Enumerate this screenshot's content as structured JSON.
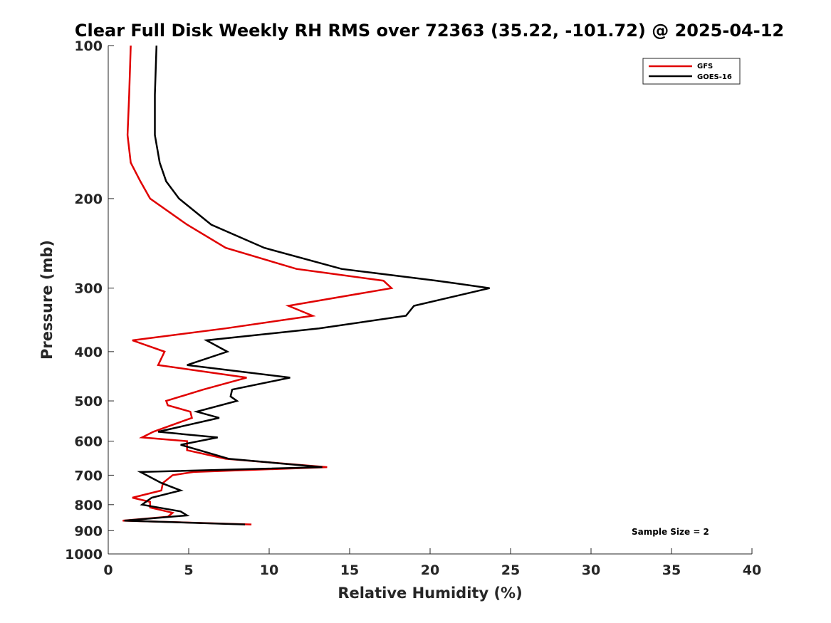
{
  "chart_data": {
    "type": "line",
    "title": "Clear Full Disk Weekly RH RMS over 72363 (35.22, -101.72) @ 2025-04-12",
    "xlabel": "Relative Humidity (%)",
    "ylabel": "Pressure (mb)",
    "xlim": [
      0,
      40
    ],
    "ylim": [
      1000,
      100
    ],
    "yscale": "log",
    "xticks": [
      0,
      5,
      10,
      15,
      20,
      25,
      30,
      35,
      40
    ],
    "yticks": [
      100,
      200,
      300,
      400,
      500,
      600,
      700,
      800,
      900,
      1000
    ],
    "legend_position": "top-right",
    "annotation": "Sample Size = 2",
    "series": [
      {
        "name": "GFS",
        "color": "#e00000",
        "points": [
          [
            1.4,
            100
          ],
          [
            1.3,
            125
          ],
          [
            1.2,
            150
          ],
          [
            1.4,
            170
          ],
          [
            2.0,
            185
          ],
          [
            2.6,
            200
          ],
          [
            4.9,
            225
          ],
          [
            7.3,
            250
          ],
          [
            11.7,
            275
          ],
          [
            17.1,
            290
          ],
          [
            17.6,
            300
          ],
          [
            11.2,
            325
          ],
          [
            12.7,
            340
          ],
          [
            7.3,
            360
          ],
          [
            1.5,
            380
          ],
          [
            3.5,
            400
          ],
          [
            3.1,
            425
          ],
          [
            8.6,
            450
          ],
          [
            5.9,
            475
          ],
          [
            3.6,
            500
          ],
          [
            3.7,
            510
          ],
          [
            5.1,
            525
          ],
          [
            5.2,
            540
          ],
          [
            2.8,
            575
          ],
          [
            2.1,
            590
          ],
          [
            4.9,
            600
          ],
          [
            4.9,
            625
          ],
          [
            7.3,
            650
          ],
          [
            13.6,
            675
          ],
          [
            5.3,
            690
          ],
          [
            4.0,
            700
          ],
          [
            3.4,
            725
          ],
          [
            3.3,
            750
          ],
          [
            1.5,
            775
          ],
          [
            2.6,
            790
          ],
          [
            2.6,
            810
          ],
          [
            4.0,
            830
          ],
          [
            3.7,
            845
          ],
          [
            0.9,
            860
          ],
          [
            8.9,
            875
          ]
        ]
      },
      {
        "name": "GOES-16",
        "color": "#000000",
        "points": [
          [
            3.0,
            100
          ],
          [
            2.9,
            125
          ],
          [
            2.9,
            150
          ],
          [
            3.2,
            170
          ],
          [
            3.6,
            185
          ],
          [
            4.4,
            200
          ],
          [
            6.4,
            225
          ],
          [
            9.7,
            250
          ],
          [
            14.5,
            275
          ],
          [
            20.4,
            290
          ],
          [
            23.7,
            300
          ],
          [
            19.0,
            325
          ],
          [
            18.5,
            340
          ],
          [
            13.1,
            360
          ],
          [
            6.1,
            380
          ],
          [
            7.4,
            400
          ],
          [
            4.9,
            425
          ],
          [
            11.3,
            450
          ],
          [
            7.7,
            475
          ],
          [
            7.6,
            490
          ],
          [
            8.0,
            500
          ],
          [
            5.5,
            525
          ],
          [
            6.9,
            540
          ],
          [
            3.1,
            575
          ],
          [
            6.8,
            590
          ],
          [
            4.5,
            610
          ],
          [
            7.5,
            650
          ],
          [
            13.3,
            675
          ],
          [
            2.0,
            690
          ],
          [
            3.3,
            725
          ],
          [
            4.5,
            750
          ],
          [
            2.7,
            775
          ],
          [
            2.1,
            800
          ],
          [
            4.5,
            825
          ],
          [
            4.9,
            840
          ],
          [
            1.0,
            860
          ],
          [
            8.5,
            875
          ]
        ]
      }
    ]
  }
}
